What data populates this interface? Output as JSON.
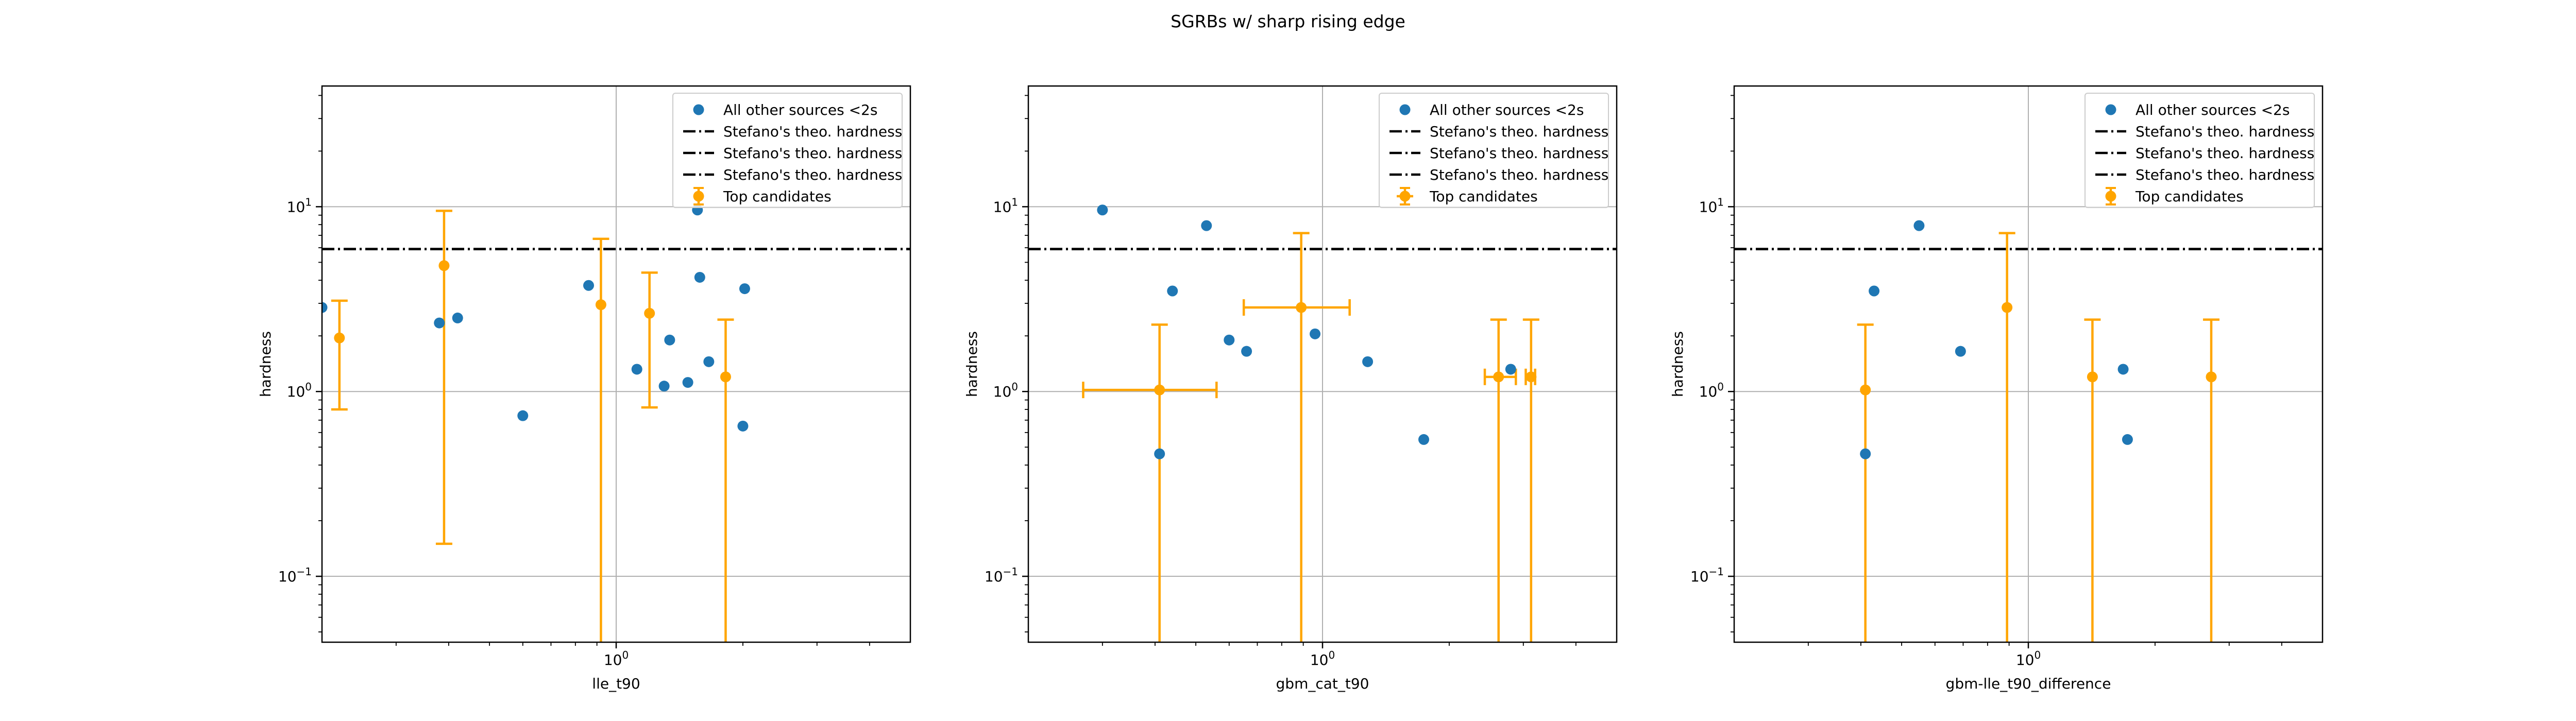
{
  "figure": {
    "title": "SGRBs w/ sharp rising edge"
  },
  "legend_labels": {
    "others": "All other sources <2s",
    "theo": "Stefano's theo. hardness",
    "top": "Top candidates"
  },
  "colors": {
    "others": "#1f77b4",
    "top": "#ffa500",
    "theo": "#000000",
    "grid": "#b0b0b0"
  },
  "chart_data": [
    {
      "type": "scatter",
      "xscale": "log",
      "yscale": "log",
      "xlim": [
        0.2,
        5.0
      ],
      "ylim": [
        0.044,
        45
      ],
      "xlabel": "lle_t90",
      "ylabel": "hardness",
      "xticks": [
        {
          "value": 1,
          "label": "10^0"
        }
      ],
      "yticks": [
        {
          "value": 0.1,
          "label": "10^-1"
        },
        {
          "value": 1,
          "label": "10^0"
        },
        {
          "value": 10,
          "label": "10^1"
        }
      ],
      "grid": true,
      "legend_position": "upper right",
      "theo_hardness": [
        5.9,
        5.9,
        5.9
      ],
      "series": [
        {
          "name": "All other sources <2s",
          "kind": "scatter",
          "x": [
            0.2,
            0.38,
            0.42,
            0.6,
            0.86,
            1.12,
            1.3,
            1.34,
            1.48,
            1.56,
            1.58,
            1.66,
            2.0,
            2.02
          ],
          "y": [
            2.85,
            2.35,
            2.5,
            0.74,
            3.75,
            1.32,
            1.07,
            1.9,
            1.12,
            9.6,
            4.15,
            1.45,
            0.65,
            3.6
          ]
        },
        {
          "name": "Top candidates",
          "kind": "errorbar",
          "points": [
            {
              "x": 0.22,
              "y": 1.95,
              "ylow": 0.8,
              "yhigh": 3.1
            },
            {
              "x": 0.39,
              "y": 4.8,
              "ylow": 0.15,
              "yhigh": 9.5
            },
            {
              "x": 0.92,
              "y": 2.95,
              "ylow": 0.001,
              "yhigh": 6.7
            },
            {
              "x": 1.2,
              "y": 2.65,
              "ylow": 0.82,
              "yhigh": 4.4
            },
            {
              "x": 1.82,
              "y": 1.2,
              "ylow": 0.001,
              "yhigh": 2.45
            }
          ]
        }
      ]
    },
    {
      "type": "scatter",
      "xscale": "log",
      "yscale": "log",
      "xlim": [
        0.2,
        5.0
      ],
      "ylim": [
        0.044,
        45
      ],
      "xlabel": "gbm_cat_t90",
      "ylabel": "hardness",
      "xticks": [
        {
          "value": 1,
          "label": "10^0"
        }
      ],
      "yticks": [
        {
          "value": 0.1,
          "label": "10^-1"
        },
        {
          "value": 1,
          "label": "10^0"
        },
        {
          "value": 10,
          "label": "10^1"
        }
      ],
      "grid": true,
      "legend_position": "upper right",
      "theo_hardness": [
        5.9,
        5.9,
        5.9
      ],
      "series": [
        {
          "name": "All other sources <2s",
          "kind": "scatter",
          "x": [
            0.3,
            0.41,
            0.44,
            0.53,
            0.6,
            0.66,
            0.96,
            1.28,
            1.74,
            2.8
          ],
          "y": [
            9.6,
            0.46,
            3.5,
            7.9,
            1.9,
            1.65,
            2.05,
            1.45,
            0.55,
            1.32
          ]
        },
        {
          "name": "Top candidates",
          "kind": "errorbar",
          "points": [
            {
              "x": 0.41,
              "y": 1.02,
              "xlow": 0.27,
              "xhigh": 0.56,
              "ylow": 0.001,
              "yhigh": 2.3
            },
            {
              "x": 0.89,
              "y": 2.85,
              "xlow": 0.65,
              "xhigh": 1.16,
              "ylow": 0.001,
              "yhigh": 7.2
            },
            {
              "x": 2.62,
              "y": 1.2,
              "xlow": 2.43,
              "xhigh": 2.88,
              "ylow": 0.001,
              "yhigh": 2.45
            },
            {
              "x": 3.13,
              "y": 1.2,
              "xlow": 3.04,
              "xhigh": 3.2,
              "ylow": 0.001,
              "yhigh": 2.45
            }
          ]
        }
      ]
    },
    {
      "type": "scatter",
      "xscale": "log",
      "yscale": "log",
      "xlim": [
        0.2,
        5.0
      ],
      "ylim": [
        0.044,
        45
      ],
      "xlabel": "gbm-lle_t90_difference",
      "ylabel": "hardness",
      "xticks": [
        {
          "value": 1,
          "label": "10^0"
        }
      ],
      "yticks": [
        {
          "value": 0.1,
          "label": "10^-1"
        },
        {
          "value": 1,
          "label": "10^0"
        },
        {
          "value": 10,
          "label": "10^1"
        }
      ],
      "grid": true,
      "legend_position": "upper right",
      "theo_hardness": [
        5.9,
        5.9,
        5.9
      ],
      "series": [
        {
          "name": "All other sources <2s",
          "kind": "scatter",
          "x": [
            0.41,
            0.43,
            0.55,
            0.69,
            1.68,
            1.72
          ],
          "y": [
            0.46,
            3.5,
            7.9,
            1.65,
            1.32,
            0.55
          ]
        },
        {
          "name": "Top candidates",
          "kind": "errorbar",
          "points": [
            {
              "x": 0.41,
              "y": 1.02,
              "ylow": 0.001,
              "yhigh": 2.3
            },
            {
              "x": 0.89,
              "y": 2.85,
              "ylow": 0.001,
              "yhigh": 7.2
            },
            {
              "x": 1.42,
              "y": 1.2,
              "ylow": 0.001,
              "yhigh": 2.45
            },
            {
              "x": 2.72,
              "y": 1.2,
              "ylow": 0.001,
              "yhigh": 2.45
            }
          ]
        }
      ]
    }
  ]
}
